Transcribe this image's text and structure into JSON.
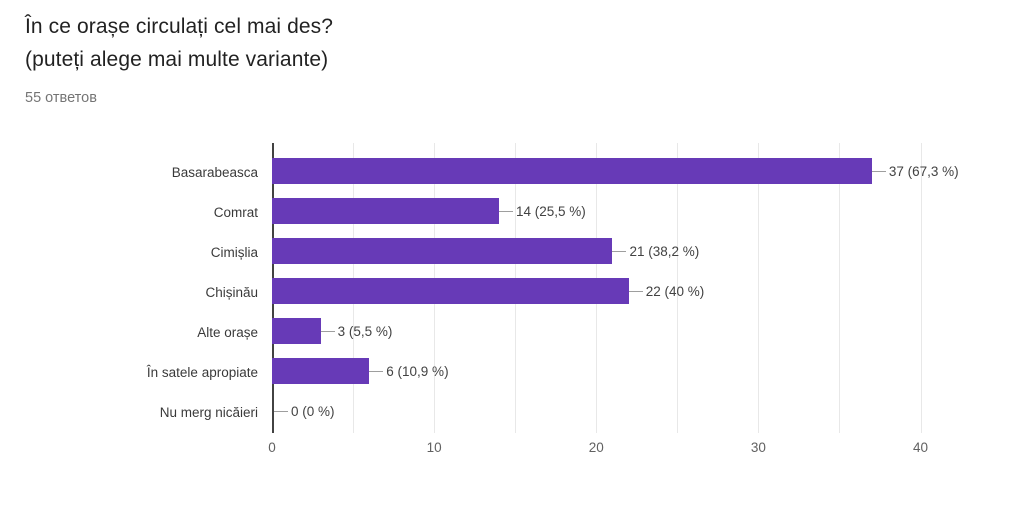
{
  "header": {
    "title_line1": "În ce orașe circulați cel mai des?",
    "title_line2": "(puteți alege mai multe variante)",
    "responses_count": "55 ответов"
  },
  "chart_data": {
    "type": "bar",
    "orientation": "horizontal",
    "title": "În ce orașe circulați cel mai des? (puteți alege mai multe variante)",
    "total_responses": 55,
    "categories": [
      "Basarabeasca",
      "Comrat",
      "Cimișlia",
      "Chișinău",
      "Alte orașe",
      "În satele apropiate",
      "Nu merg nicăieri"
    ],
    "values": [
      37,
      14,
      21,
      22,
      3,
      6,
      0
    ],
    "percents": [
      67.3,
      25.5,
      38.2,
      40,
      5.5,
      10.9,
      0
    ],
    "value_labels": [
      "37 (67,3 %)",
      "14 (25,5 %)",
      "21 (38,2 %)",
      "22 (40 %)",
      "3 (5,5 %)",
      "6 (10,9 %)",
      "0 (0 %)"
    ],
    "x_ticks": [
      0,
      10,
      20,
      30,
      40
    ],
    "xlim": [
      0,
      41.2
    ],
    "gridline_interval": 5,
    "grid": true,
    "legend": "none",
    "bar_color": "#673ab7",
    "gridline_color": "#e8e8e8",
    "axis_color": "#424242"
  }
}
